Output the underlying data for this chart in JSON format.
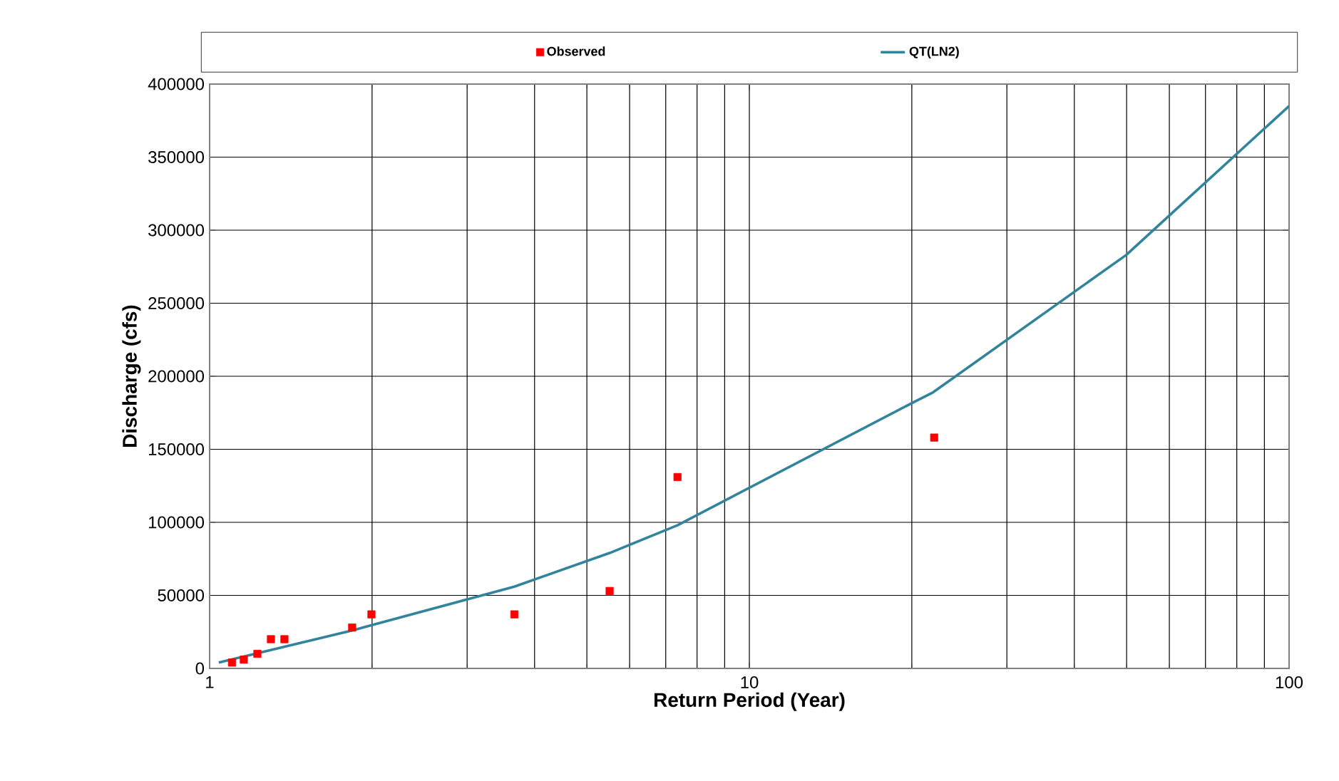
{
  "chart_data": {
    "type": "scatter",
    "xlabel": "Return Period (Year)",
    "ylabel": "Discharge (cfs)",
    "xlim": [
      1,
      100
    ],
    "xticks": [
      1,
      10,
      100
    ],
    "ylim": [
      0,
      400000
    ],
    "yticks": [
      0,
      50000,
      100000,
      150000,
      200000,
      250000,
      300000,
      350000,
      400000
    ],
    "log": "x",
    "grid": true,
    "legend": "top",
    "series": [
      {
        "name": "Observed",
        "marker": "square",
        "color": "#ff0000",
        "x": [
          1.1,
          1.157,
          1.226,
          1.299,
          1.376,
          1.837,
          1.995,
          3.67,
          5.51,
          7.36,
          22.0
        ],
        "values": [
          4000,
          6000,
          10000,
          20000,
          20000,
          28000,
          37000,
          37000,
          53000,
          131000,
          158000
        ]
      },
      {
        "name": "QT(LN2)",
        "type": "line",
        "marker": "none",
        "color": "#31849b",
        "x": [
          1.04,
          1.837,
          3.67,
          5.51,
          7.36,
          20.1,
          21.9,
          49.9,
          100
        ],
        "values": [
          4000,
          26000,
          56000,
          79000,
          98000,
          182000,
          189000,
          283000,
          385000
        ]
      }
    ]
  }
}
